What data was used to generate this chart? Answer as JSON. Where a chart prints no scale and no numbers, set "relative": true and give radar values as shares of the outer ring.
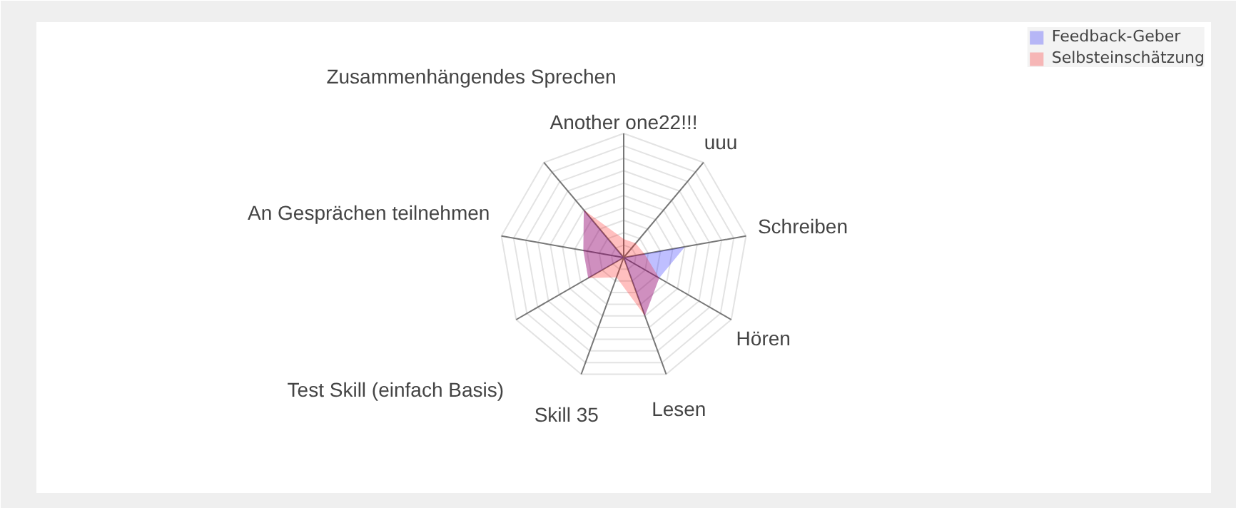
{
  "chart_data": {
    "type": "radar",
    "relative": true,
    "grid": true,
    "legend": "top right",
    "marker": "none",
    "categories": [
      "Another one22!!!",
      "uuu",
      "Schreiben",
      "Hören",
      "Lesen",
      "Skill 35",
      "Test Skill (einfach Basis)",
      "An Gesprächen teilnehmen",
      "Zusammenhängendes Sprechen"
    ],
    "series": [
      {
        "name": "Feedback-Geber",
        "color": "#0000ff",
        "values": [
          0,
          0,
          0.5,
          0.33,
          0.5,
          0,
          0.33,
          0.33,
          0.5
        ]
      },
      {
        "name": "Selbsteinschätzung",
        "color": "#ff0000",
        "values": [
          0.15,
          0.15,
          0.17,
          0.33,
          0.5,
          0.17,
          0.33,
          0.33,
          0.5
        ]
      }
    ]
  }
}
